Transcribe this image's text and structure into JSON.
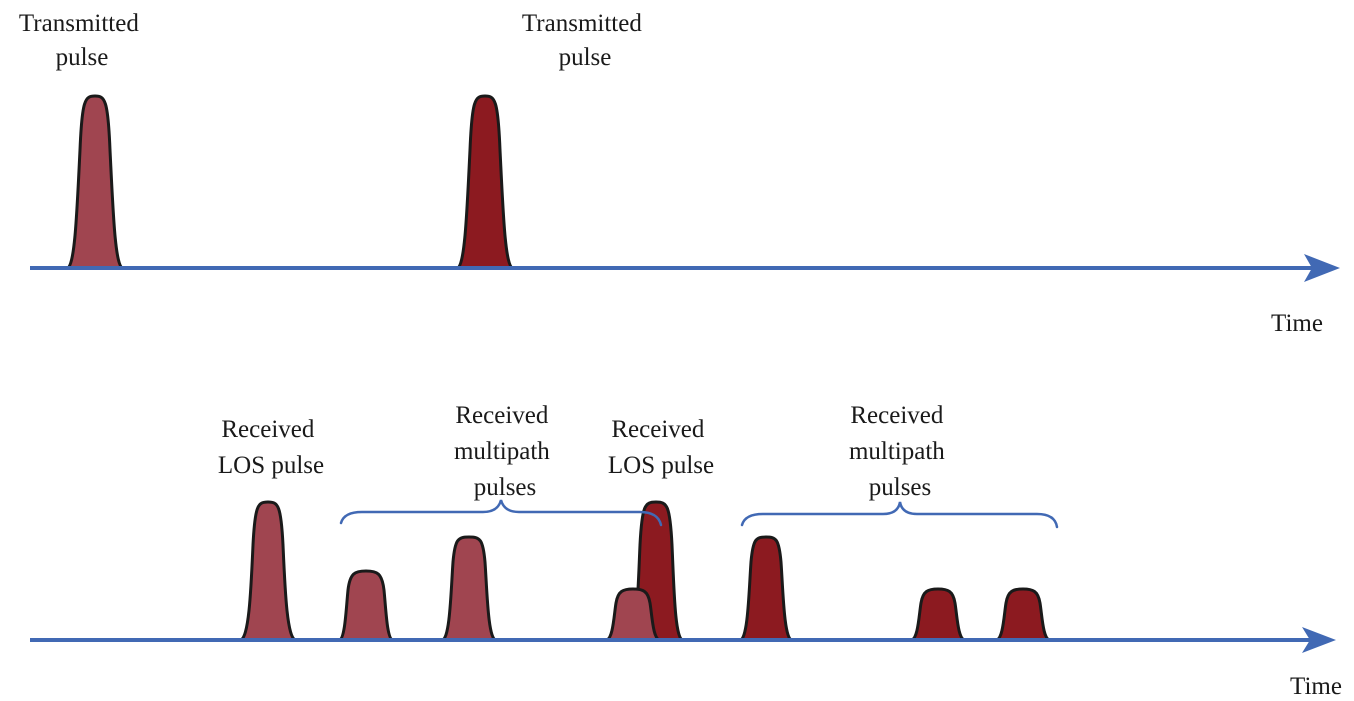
{
  "colors": {
    "axis": "#4169b4",
    "pulse_first_period": "#a04550",
    "pulse_second_period": "#8c1a20",
    "outline": "#1a1a1a"
  },
  "transmitted": {
    "label_1_line_1": "Transmitted",
    "label_1_line_2": "pulse",
    "label_2_line_1": "Transmitted",
    "label_2_line_2": "pulse",
    "axis_label": "Time"
  },
  "received": {
    "los_label_1_line_1": "Received",
    "los_label_1_line_2": "LOS pulse",
    "multipath_label_1_line_1": "Received",
    "multipath_label_1_line_2": "multipath",
    "multipath_label_1_line_3": "pulses",
    "los_label_2_line_1": "Received",
    "los_label_2_line_2": "LOS pulse",
    "multipath_label_2_line_1": "Received",
    "multipath_label_2_line_2": "multipath",
    "multipath_label_2_line_3": "pulses",
    "axis_label": "Time"
  }
}
